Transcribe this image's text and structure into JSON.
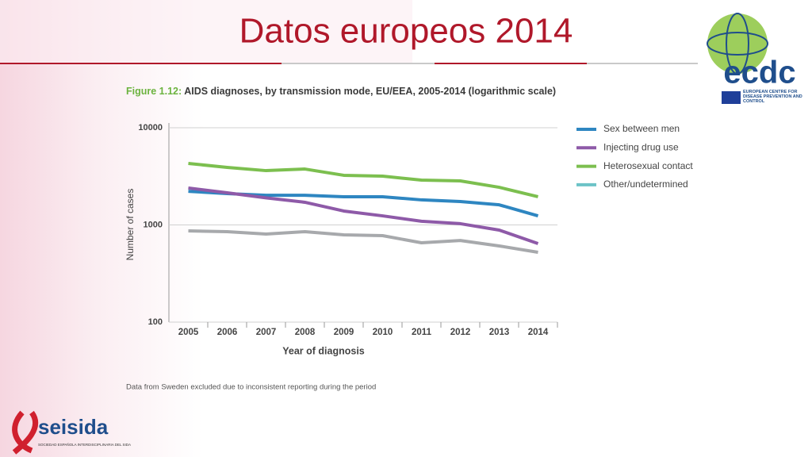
{
  "slide_title": "Datos europeos 2014",
  "logo_ecdc": {
    "name": "ecdc",
    "text": "EUROPEAN CENTRE FOR DISEASE PREVENTION AND CONTROL"
  },
  "logo_seisida": {
    "name": "seisida",
    "text": "SOCIEDAD ESPAÑOLA INTERDISCIPLINARIA DEL SIDA"
  },
  "chart_data": {
    "type": "line",
    "figure_label": "Figure 1.12:",
    "title": "AIDS diagnoses, by transmission mode, EU/EEA, 2005-2014 (logarithmic scale)",
    "x_label": "Year of diagnosis",
    "y_label": "Number of cases",
    "note": "Data from Sweden excluded due to inconsistent reporting during the period",
    "categories": [
      "2005",
      "2006",
      "2007",
      "2008",
      "2009",
      "2010",
      "2011",
      "2012",
      "2013",
      "2014"
    ],
    "series": [
      {
        "name": "Sex between men",
        "color": "#2e86c1",
        "values": [
          2220,
          2100,
          2020,
          2020,
          1950,
          1950,
          1810,
          1740,
          1610,
          1240
        ]
      },
      {
        "name": "Injecting drug use",
        "color": "#8e5aa8",
        "values": [
          2400,
          2140,
          1900,
          1710,
          1390,
          1240,
          1090,
          1030,
          885,
          643
        ]
      },
      {
        "name": "Heterosexual contact",
        "color": "#7cbf4f",
        "values": [
          4290,
          3910,
          3620,
          3760,
          3240,
          3180,
          2890,
          2840,
          2440,
          1950
        ]
      },
      {
        "name": "Other/undetermined",
        "color": "#a7a9ac",
        "legend_color": "#6cc3c7",
        "values": [
          869,
          852,
          805,
          852,
          791,
          776,
          655,
          692,
          608,
          523
        ]
      }
    ],
    "ylim": [
      100,
      10000
    ],
    "yticks": [
      100,
      1000,
      10000
    ],
    "log_scale": true,
    "grid": true,
    "legend": "right"
  }
}
